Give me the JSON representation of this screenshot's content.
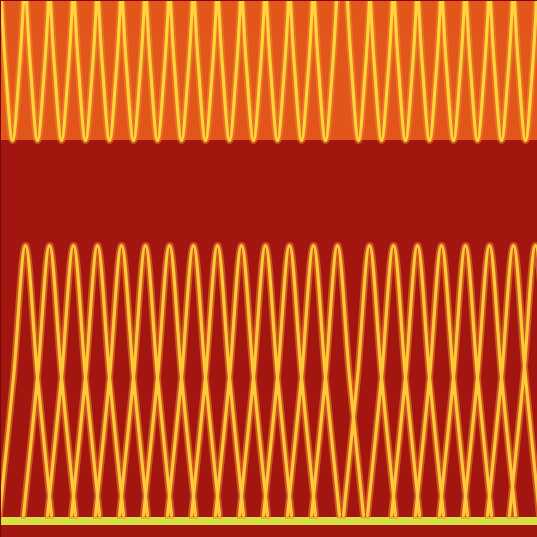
{
  "chart_data": {
    "type": "spectrogram",
    "tick_labels": false,
    "xlim": [
      0,
      537
    ],
    "ylim": [
      0,
      537
    ],
    "regions": [
      {
        "y": [
          397,
          537
        ],
        "color": "#e2561c"
      },
      {
        "y": [
          12,
          20
        ],
        "color": "#d6e044"
      }
    ],
    "series": [
      {
        "color": "#ffd43c",
        "x": [
          1,
          5,
          12,
          19,
          23,
          null,
          26,
          30,
          37,
          44,
          48,
          null,
          50,
          54,
          61,
          68,
          72,
          null,
          74,
          78,
          85,
          92,
          96,
          null,
          98,
          102,
          109,
          116,
          120,
          null,
          122,
          126,
          133,
          140,
          144,
          null,
          146,
          150,
          157,
          164,
          168,
          null,
          170,
          174,
          181,
          188,
          192,
          null,
          194,
          198,
          205,
          212,
          216,
          null,
          218,
          222,
          229,
          236,
          240,
          null,
          242,
          246,
          253,
          260,
          264,
          null,
          266,
          270,
          277,
          284,
          288,
          null,
          290,
          294,
          301,
          308,
          312,
          null,
          314,
          318,
          325,
          332,
          336,
          null,
          347,
          351,
          358,
          365,
          369,
          null,
          370,
          374,
          381,
          388,
          392,
          null,
          394,
          398,
          405,
          412,
          416,
          null,
          418,
          422,
          429,
          436,
          440,
          null,
          442,
          446,
          453,
          460,
          464,
          null,
          466,
          470,
          477,
          484,
          488,
          null,
          490,
          494,
          501,
          508,
          512,
          null,
          514,
          518,
          525,
          532,
          536,
          null
        ],
        "values": [
          537,
          470,
          397,
          470,
          537,
          null,
          537,
          470,
          397,
          470,
          537,
          null,
          537,
          470,
          397,
          470,
          537,
          null,
          537,
          470,
          397,
          470,
          537,
          null,
          537,
          470,
          397,
          470,
          537,
          null,
          537,
          470,
          397,
          470,
          537,
          null,
          537,
          470,
          397,
          470,
          537,
          null,
          537,
          470,
          397,
          470,
          537,
          null,
          537,
          470,
          397,
          470,
          537,
          null,
          537,
          470,
          397,
          470,
          537,
          null,
          537,
          470,
          397,
          470,
          537,
          null,
          537,
          470,
          397,
          470,
          537,
          null,
          537,
          470,
          397,
          470,
          537,
          null,
          537,
          470,
          397,
          470,
          537,
          null,
          537,
          470,
          397,
          470,
          537,
          null,
          537,
          470,
          397,
          470,
          537,
          null,
          537,
          470,
          397,
          470,
          537,
          null,
          537,
          470,
          397,
          470,
          537,
          null,
          537,
          470,
          397,
          470,
          537,
          null,
          537,
          470,
          397,
          470,
          537,
          null,
          537,
          470,
          397,
          470,
          537,
          null,
          537,
          470,
          397,
          470,
          537,
          null
        ]
      },
      {
        "color": "#ffc83a",
        "x": [
          -1,
          13,
          25,
          37,
          51,
          null,
          23,
          37,
          49,
          61,
          75,
          null,
          47,
          61,
          73,
          85,
          99,
          null,
          71,
          85,
          97,
          109,
          123,
          null,
          95,
          109,
          121,
          133,
          147,
          null,
          119,
          133,
          145,
          157,
          171,
          null,
          143,
          157,
          169,
          181,
          195,
          null,
          167,
          181,
          193,
          205,
          219,
          null,
          191,
          205,
          217,
          229,
          243,
          null,
          215,
          229,
          241,
          253,
          267,
          null,
          239,
          253,
          265,
          277,
          291,
          null,
          263,
          277,
          289,
          301,
          315,
          null,
          287,
          301,
          313,
          325,
          339,
          null,
          311,
          325,
          337,
          349,
          363,
          null,
          343,
          357,
          369,
          381,
          395,
          null,
          367,
          381,
          393,
          405,
          419,
          null,
          391,
          405,
          417,
          429,
          443,
          null,
          415,
          429,
          441,
          453,
          467,
          null,
          439,
          453,
          465,
          477,
          491,
          null,
          463,
          477,
          489,
          501,
          515,
          null,
          487,
          501,
          513,
          525,
          539,
          null,
          509,
          523,
          535,
          547,
          561,
          null
        ],
        "values": [
          22,
          160,
          292,
          160,
          22,
          null,
          22,
          160,
          292,
          160,
          22,
          null,
          22,
          160,
          292,
          160,
          22,
          null,
          22,
          160,
          292,
          160,
          22,
          null,
          22,
          160,
          292,
          160,
          22,
          null,
          22,
          160,
          292,
          160,
          22,
          null,
          22,
          160,
          292,
          160,
          22,
          null,
          22,
          160,
          292,
          160,
          22,
          null,
          22,
          160,
          292,
          160,
          22,
          null,
          22,
          160,
          292,
          160,
          22,
          null,
          22,
          160,
          292,
          160,
          22,
          null,
          22,
          160,
          292,
          160,
          22,
          null,
          22,
          160,
          292,
          160,
          22,
          null,
          22,
          160,
          292,
          160,
          22,
          null,
          22,
          160,
          292,
          160,
          22,
          null,
          22,
          160,
          292,
          160,
          22,
          null,
          22,
          160,
          292,
          160,
          22,
          null,
          22,
          160,
          292,
          160,
          22,
          null,
          22,
          160,
          292,
          160,
          22,
          null,
          22,
          160,
          292,
          160,
          22,
          null,
          22,
          160,
          292,
          160,
          22,
          null,
          22,
          160,
          292,
          160,
          22,
          null
        ]
      }
    ]
  }
}
